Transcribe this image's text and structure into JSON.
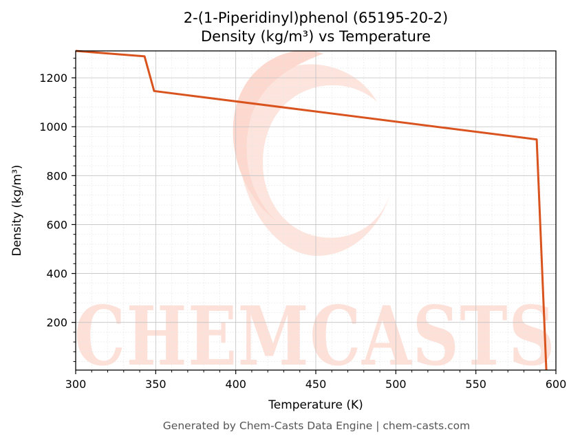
{
  "chart_data": {
    "type": "line",
    "title_line1": "2-(1-Piperidinyl)phenol (65195-20-2)",
    "title_line2": "Density (kg/m³) vs Temperature",
    "xlabel": "Temperature (K)",
    "ylabel": "Density (kg/m³)",
    "xlim": [
      300,
      600
    ],
    "ylim": [
      5,
      1310
    ],
    "xticks": [
      300,
      350,
      400,
      450,
      500,
      550,
      600
    ],
    "yticks": [
      200,
      400,
      600,
      800,
      1000,
      1200
    ],
    "grid": true,
    "series": [
      {
        "color": "#d9531e",
        "points": [
          [
            300,
            1310
          ],
          [
            343,
            1288
          ],
          [
            349,
            1146
          ],
          [
            588,
            948
          ],
          [
            594,
            5
          ]
        ]
      }
    ]
  },
  "watermark": {
    "text": "CHEMCASTS",
    "color": "#fde0d8"
  },
  "footer": "Generated by Chem-Casts Data Engine | chem-casts.com"
}
